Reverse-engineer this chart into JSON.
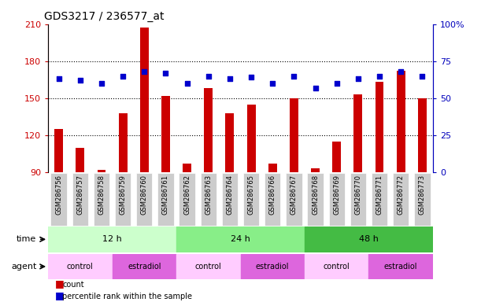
{
  "title": "GDS3217 / 236577_at",
  "samples": [
    "GSM286756",
    "GSM286757",
    "GSM286758",
    "GSM286759",
    "GSM286760",
    "GSM286761",
    "GSM286762",
    "GSM286763",
    "GSM286764",
    "GSM286765",
    "GSM286766",
    "GSM286767",
    "GSM286768",
    "GSM286769",
    "GSM286770",
    "GSM286771",
    "GSM286772",
    "GSM286773"
  ],
  "count_values": [
    125,
    110,
    92,
    138,
    207,
    152,
    97,
    158,
    138,
    145,
    97,
    150,
    93,
    115,
    153,
    163,
    172,
    150
  ],
  "percentile_values": [
    63,
    62,
    60,
    65,
    68,
    67,
    60,
    65,
    63,
    64,
    60,
    65,
    57,
    60,
    63,
    65,
    68,
    65
  ],
  "ylim_left": [
    90,
    210
  ],
  "ylim_right": [
    0,
    100
  ],
  "yticks_left": [
    90,
    120,
    150,
    180,
    210
  ],
  "yticks_right": [
    0,
    25,
    50,
    75,
    100
  ],
  "ytick_labels_left": [
    "90",
    "120",
    "150",
    "180",
    "210"
  ],
  "ytick_labels_right": [
    "0",
    "25",
    "50",
    "75",
    "100%"
  ],
  "time_groups": [
    {
      "label": "12 h",
      "start": 0,
      "end": 6,
      "color": "#ccffcc"
    },
    {
      "label": "24 h",
      "start": 6,
      "end": 12,
      "color": "#88ee88"
    },
    {
      "label": "48 h",
      "start": 12,
      "end": 18,
      "color": "#44bb44"
    }
  ],
  "agent_groups": [
    {
      "label": "control",
      "start": 0,
      "end": 3,
      "color": "#ffccff"
    },
    {
      "label": "estradiol",
      "start": 3,
      "end": 6,
      "color": "#dd66dd"
    },
    {
      "label": "control",
      "start": 6,
      "end": 9,
      "color": "#ffccff"
    },
    {
      "label": "estradiol",
      "start": 9,
      "end": 12,
      "color": "#dd66dd"
    },
    {
      "label": "control",
      "start": 12,
      "end": 15,
      "color": "#ffccff"
    },
    {
      "label": "estradiol",
      "start": 15,
      "end": 18,
      "color": "#dd66dd"
    }
  ],
  "bar_color": "#cc0000",
  "dot_color": "#0000cc",
  "grid_color": "#000000",
  "bg_color": "#ffffff",
  "tick_bg_color": "#cccccc",
  "left_axis_color": "#cc0000",
  "right_axis_color": "#0000bb"
}
